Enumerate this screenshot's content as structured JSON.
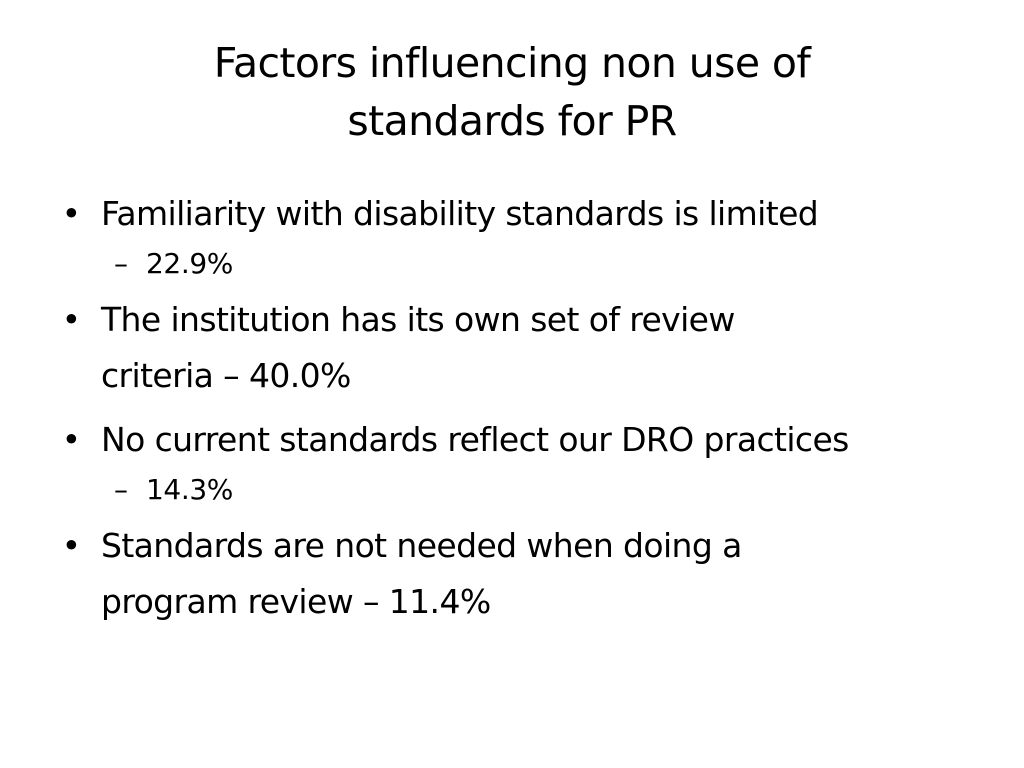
{
  "slide": {
    "title_lines": [
      "Factors influencing non use of",
      "standards for PR"
    ],
    "bullet_symbol": "•",
    "dash_symbol": "–",
    "items": [
      {
        "lines": [
          "Familiarity with disability standards is limited"
        ],
        "sub": "22.9%"
      },
      {
        "lines": [
          "The institution has its own set of review",
          "criteria – 40.0%"
        ]
      },
      {
        "lines": [
          "No current standards reflect our DRO practices"
        ],
        "sub": "14.3%"
      },
      {
        "lines": [
          "Standards are not needed when doing a",
          "program review – 11.4%"
        ]
      }
    ]
  }
}
